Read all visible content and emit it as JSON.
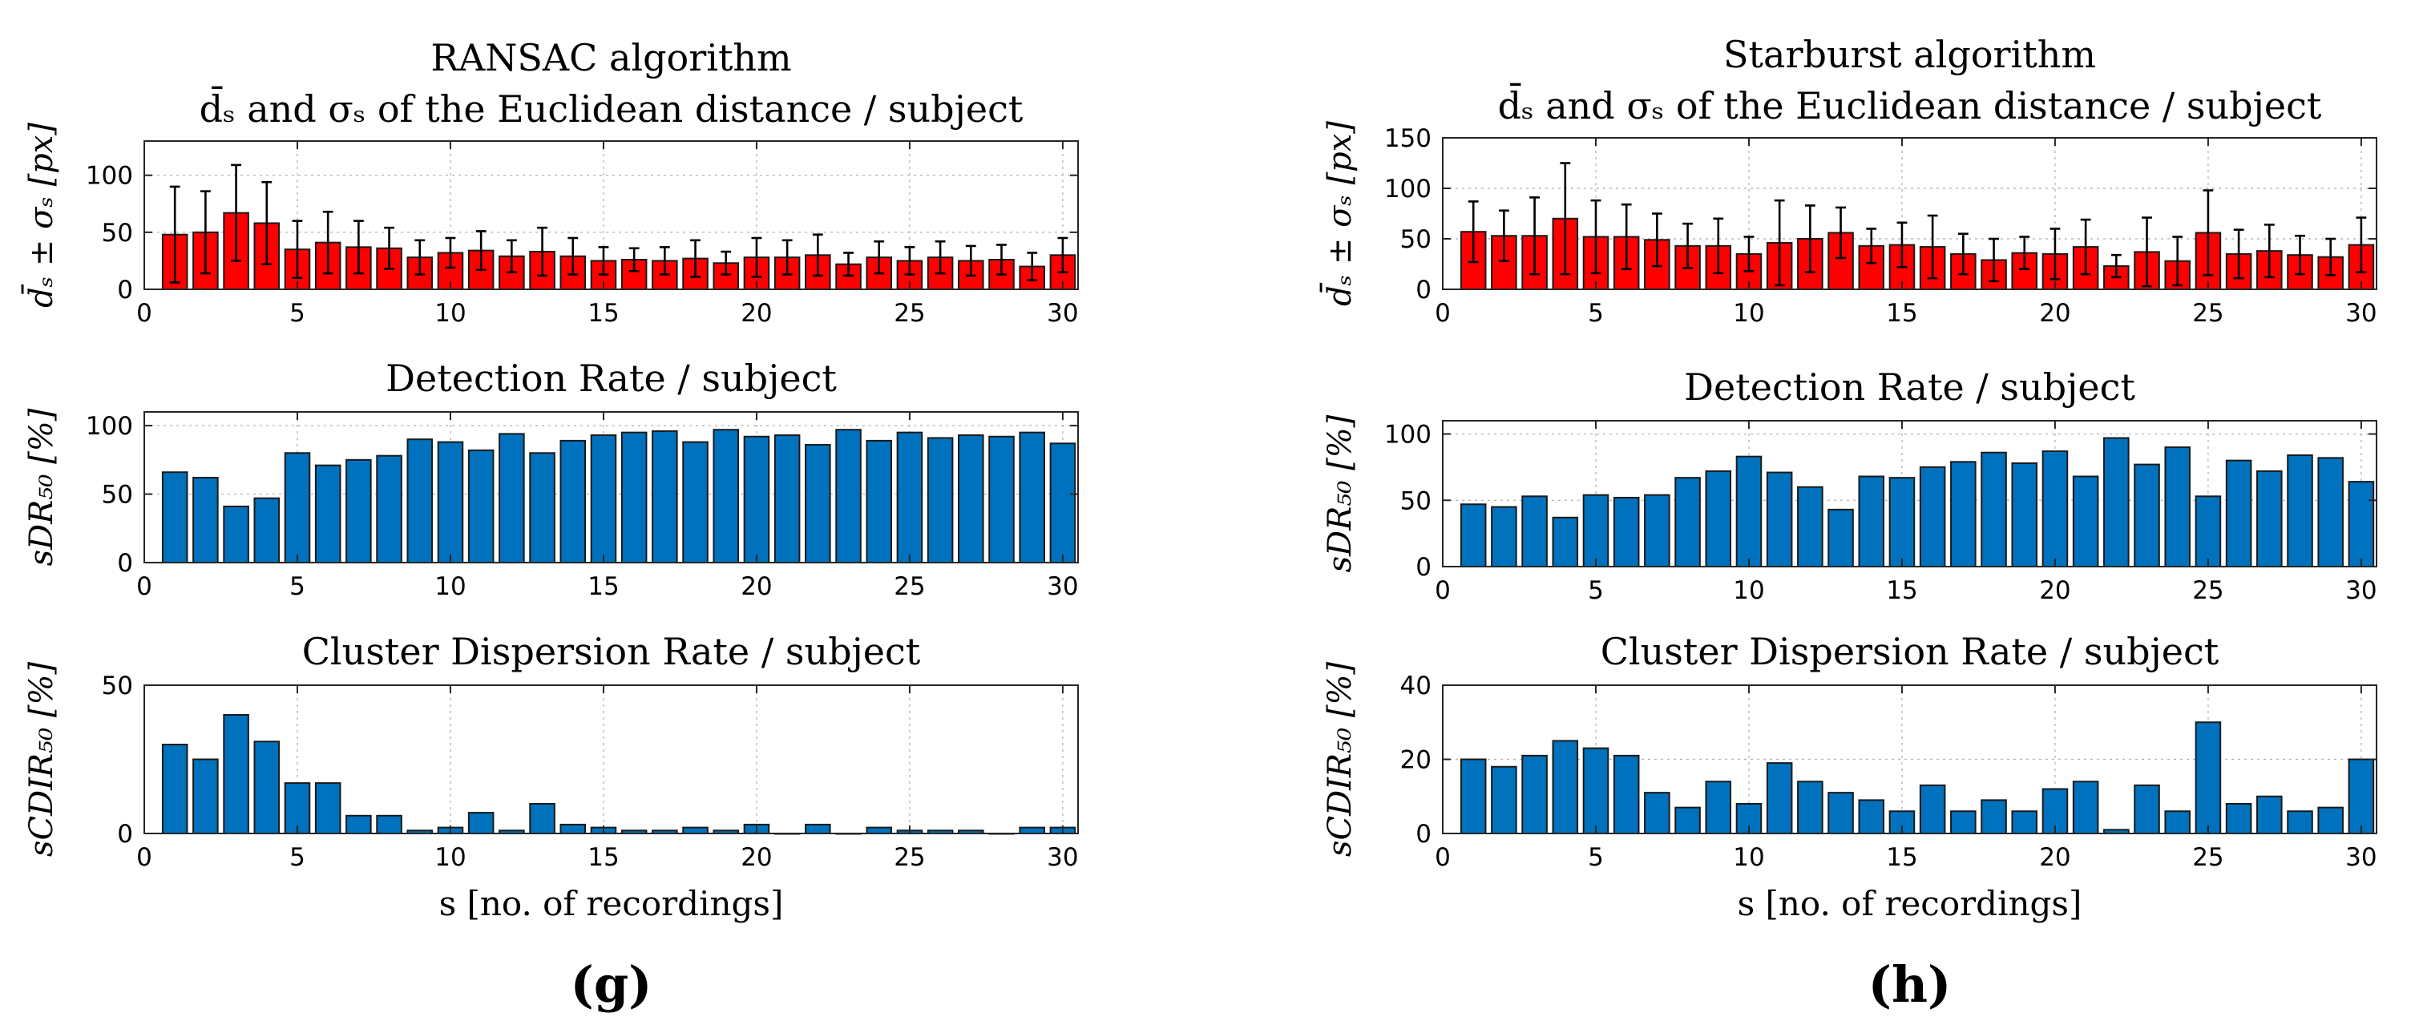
{
  "chart_data": [
    {
      "type": "bar",
      "panel_label": "(g)",
      "title_lines": [
        "RANSAC algorithm",
        "d̄ₛ and σₛ of the Euclidean distance / subject"
      ],
      "ylabel": "d̄ₛ ± σₛ [px]",
      "xlabel": "",
      "xlim": [
        0,
        30.5
      ],
      "ylim": [
        0,
        130
      ],
      "xticks": [
        0,
        5,
        10,
        15,
        20,
        25,
        30
      ],
      "yticks": [
        0,
        50,
        100
      ],
      "grid": true,
      "color": "#ff0000",
      "x": [
        1,
        2,
        3,
        4,
        5,
        6,
        7,
        8,
        9,
        10,
        11,
        12,
        13,
        14,
        15,
        16,
        17,
        18,
        19,
        20,
        21,
        22,
        23,
        24,
        25,
        26,
        27,
        28,
        29,
        30
      ],
      "values": [
        48,
        50,
        67,
        58,
        35,
        41,
        37,
        36,
        28,
        32,
        34,
        29,
        33,
        29,
        25,
        26,
        25,
        27,
        23,
        28,
        28,
        30,
        22,
        28,
        25,
        28,
        25,
        26,
        20,
        30
      ],
      "errors": [
        42,
        36,
        42,
        36,
        25,
        27,
        23,
        18,
        15,
        13,
        17,
        14,
        21,
        16,
        12,
        10,
        12,
        16,
        10,
        17,
        15,
        18,
        10,
        14,
        12,
        14,
        13,
        13,
        12,
        15
      ]
    },
    {
      "type": "bar",
      "title": "Detection Rate / subject",
      "ylabel": "sDR₅₀ [%]",
      "xlim": [
        0,
        30.5
      ],
      "ylim": [
        0,
        110
      ],
      "xticks": [
        0,
        5,
        10,
        15,
        20,
        25,
        30
      ],
      "yticks": [
        0,
        50,
        100
      ],
      "grid": true,
      "color": "#0072bd",
      "x": [
        1,
        2,
        3,
        4,
        5,
        6,
        7,
        8,
        9,
        10,
        11,
        12,
        13,
        14,
        15,
        16,
        17,
        18,
        19,
        20,
        21,
        22,
        23,
        24,
        25,
        26,
        27,
        28,
        29,
        30
      ],
      "values": [
        66,
        62,
        41,
        47,
        80,
        71,
        75,
        78,
        90,
        88,
        82,
        94,
        80,
        89,
        93,
        95,
        96,
        88,
        97,
        92,
        93,
        86,
        97,
        89,
        95,
        91,
        93,
        92,
        95,
        87
      ]
    },
    {
      "type": "bar",
      "title": "Cluster Dispersion Rate / subject",
      "ylabel": "sCDIR₅₀ [%]",
      "xlabel": "s [no. of recordings]",
      "xlim": [
        0,
        30.5
      ],
      "ylim": [
        0,
        50
      ],
      "xticks": [
        0,
        5,
        10,
        15,
        20,
        25,
        30
      ],
      "yticks": [
        0,
        50
      ],
      "grid": true,
      "color": "#0072bd",
      "x": [
        1,
        2,
        3,
        4,
        5,
        6,
        7,
        8,
        9,
        10,
        11,
        12,
        13,
        14,
        15,
        16,
        17,
        18,
        19,
        20,
        21,
        22,
        23,
        24,
        25,
        26,
        27,
        28,
        29,
        30
      ],
      "values": [
        30,
        25,
        40,
        31,
        17,
        17,
        6,
        6,
        1,
        2,
        7,
        1,
        10,
        3,
        2,
        1,
        1,
        2,
        1,
        3,
        0,
        3,
        0,
        2,
        1,
        1,
        1,
        0,
        2,
        2
      ]
    },
    {
      "type": "bar",
      "panel_label": "(h)",
      "title_lines": [
        "Starburst algorithm",
        "d̄ₛ and σₛ of the Euclidean distance / subject"
      ],
      "ylabel": "d̄ₛ ± σₛ [px]",
      "xlim": [
        0,
        30.5
      ],
      "ylim": [
        0,
        150
      ],
      "xticks": [
        0,
        5,
        10,
        15,
        20,
        25,
        30
      ],
      "yticks": [
        0,
        50,
        100,
        150
      ],
      "grid": true,
      "color": "#ff0000",
      "x": [
        1,
        2,
        3,
        4,
        5,
        6,
        7,
        8,
        9,
        10,
        11,
        12,
        13,
        14,
        15,
        16,
        17,
        18,
        19,
        20,
        21,
        22,
        23,
        24,
        25,
        26,
        27,
        28,
        29,
        30
      ],
      "values": [
        57,
        53,
        53,
        70,
        52,
        52,
        49,
        43,
        43,
        35,
        46,
        50,
        56,
        43,
        44,
        42,
        35,
        29,
        36,
        35,
        42,
        23,
        37,
        28,
        56,
        35,
        38,
        34,
        32,
        44
      ],
      "errors": [
        30,
        25,
        38,
        55,
        36,
        32,
        26,
        22,
        27,
        17,
        42,
        33,
        25,
        17,
        22,
        31,
        20,
        21,
        16,
        25,
        27,
        11,
        34,
        24,
        42,
        24,
        26,
        19,
        18,
        27
      ]
    },
    {
      "type": "bar",
      "title": "Detection Rate / subject",
      "ylabel": "sDR₅₀ [%]",
      "xlim": [
        0,
        30.5
      ],
      "ylim": [
        0,
        110
      ],
      "xticks": [
        0,
        5,
        10,
        15,
        20,
        25,
        30
      ],
      "yticks": [
        0,
        50,
        100
      ],
      "grid": true,
      "color": "#0072bd",
      "x": [
        1,
        2,
        3,
        4,
        5,
        6,
        7,
        8,
        9,
        10,
        11,
        12,
        13,
        14,
        15,
        16,
        17,
        18,
        19,
        20,
        21,
        22,
        23,
        24,
        25,
        26,
        27,
        28,
        29,
        30
      ],
      "values": [
        47,
        45,
        53,
        37,
        54,
        52,
        54,
        67,
        72,
        83,
        71,
        60,
        43,
        68,
        67,
        75,
        79,
        86,
        78,
        87,
        68,
        97,
        77,
        90,
        53,
        80,
        72,
        84,
        82,
        64
      ]
    },
    {
      "type": "bar",
      "title": "Cluster Dispersion Rate / subject",
      "ylabel": "sCDIR₅₀ [%]",
      "xlabel": "s [no. of recordings]",
      "xlim": [
        0,
        30.5
      ],
      "ylim": [
        0,
        40
      ],
      "xticks": [
        0,
        5,
        10,
        15,
        20,
        25,
        30
      ],
      "yticks": [
        0,
        20,
        40
      ],
      "grid": true,
      "color": "#0072bd",
      "x": [
        1,
        2,
        3,
        4,
        5,
        6,
        7,
        8,
        9,
        10,
        11,
        12,
        13,
        14,
        15,
        16,
        17,
        18,
        19,
        20,
        21,
        22,
        23,
        24,
        25,
        26,
        27,
        28,
        29,
        30
      ],
      "values": [
        20,
        18,
        21,
        25,
        23,
        21,
        11,
        7,
        14,
        8,
        19,
        14,
        11,
        9,
        6,
        13,
        6,
        9,
        6,
        12,
        14,
        1,
        13,
        6,
        30,
        8,
        10,
        6,
        7,
        20
      ]
    }
  ]
}
